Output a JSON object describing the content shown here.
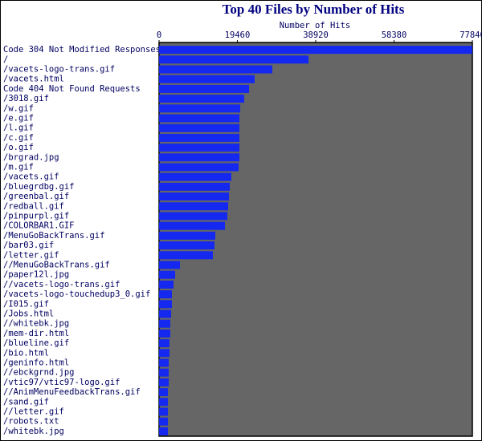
{
  "chart_data": {
    "type": "hbar",
    "title": "Top 40 Files by Number of Hits",
    "x_label": "Number of Hits",
    "categories": [
      "Code 304 Not Modified Responses",
      "/",
      "/vacets-logo-trans.gif",
      "/vacets.html",
      "Code 404 Not Found Requests",
      "/3018.gif",
      "/w.gif",
      "/e.gif",
      "/l.gif",
      "/c.gif",
      "/o.gif",
      "/brgrad.jpg",
      "/m.gif",
      "/vacets.gif",
      "/bluegrdbg.gif",
      "/greenbal.gif",
      "/redball.gif",
      "/pinpurpl.gif",
      "/COLORBAR1.GIF",
      "/MenuGoBackTrans.gif",
      "/bar03.gif",
      "/letter.gif",
      "//MenuGoBackTrans.gif",
      "/paper12l.jpg",
      "//vacets-logo-trans.gif",
      "/vacets-logo-touchedup3_0.gif",
      "/I015.gif",
      "/Jobs.html",
      "//whitebk.jpg",
      "/mem-dir.html",
      "/blueline.gif",
      "/bio.html",
      "/geninfo.html",
      "//ebckgrnd.jpg",
      "/vtic97/vtic97-logo.gif",
      "//AnimMenuFeedbackTrans.gif",
      "/sand.gif",
      "//letter.gif",
      "/robots.txt",
      "/whitebk.jpg"
    ],
    "values": [
      77800,
      37130,
      28140,
      23750,
      22350,
      21160,
      20160,
      19960,
      19960,
      19960,
      19960,
      19960,
      19760,
      17960,
      17560,
      17370,
      17170,
      16970,
      16370,
      13970,
      13770,
      13370,
      5190,
      3990,
      3590,
      3190,
      3190,
      2990,
      2790,
      2790,
      2590,
      2590,
      2400,
      2400,
      2400,
      2200,
      2200,
      2200,
      2200,
      2200
    ],
    "color": "#1428f0",
    "plot_background": "#666666",
    "title_color": "#000080",
    "xlim": [
      0,
      77840
    ],
    "xticks": [
      0,
      19460,
      38920,
      58380,
      77840
    ]
  }
}
